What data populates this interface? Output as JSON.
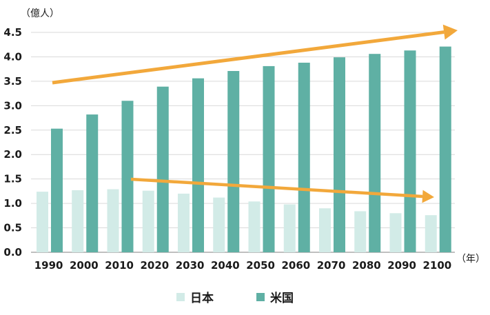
{
  "chart_data": {
    "type": "bar",
    "ylabel": "（億人）",
    "xlabel": "（年）",
    "ylim": [
      0,
      4.5
    ],
    "yticks": [
      "0.0",
      "0.5",
      "1.0",
      "1.5",
      "2.0",
      "2.5",
      "3.0",
      "3.5",
      "4.0",
      "4.5"
    ],
    "categories": [
      "1990",
      "2000",
      "2010",
      "2020",
      "2030",
      "2040",
      "2050",
      "2060",
      "2070",
      "2080",
      "2090",
      "2100"
    ],
    "series": [
      {
        "name": "日本",
        "color": "#d2ebe7",
        "values": [
          1.24,
          1.27,
          1.29,
          1.26,
          1.2,
          1.12,
          1.04,
          0.98,
          0.9,
          0.84,
          0.8,
          0.76
        ]
      },
      {
        "name": "米国",
        "color": "#5fb0a4",
        "values": [
          2.53,
          2.82,
          3.1,
          3.39,
          3.56,
          3.71,
          3.81,
          3.88,
          3.99,
          4.06,
          4.13,
          4.21
        ]
      }
    ],
    "annotations": [
      {
        "kind": "trend-arrow",
        "series": "米国",
        "color": "#f2a83b"
      },
      {
        "kind": "trend-arrow",
        "series": "日本",
        "color": "#f2a83b"
      }
    ],
    "grid": "horizontal",
    "legend_position": "bottom-center"
  }
}
